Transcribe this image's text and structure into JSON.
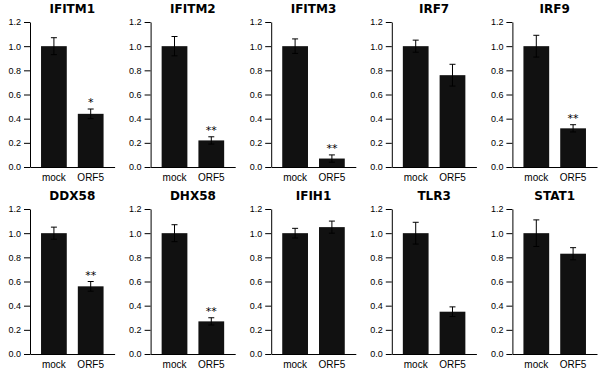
{
  "chart_data": [
    {
      "type": "bar",
      "title": "IFITM1",
      "categories": [
        "mock",
        "ORF5"
      ],
      "values": [
        1.0,
        0.44
      ],
      "errors": [
        0.07,
        0.04
      ],
      "color": "#111111",
      "ylim": [
        0,
        1.2
      ],
      "yticks": [
        {
          "value": 0,
          "label": "0.0"
        },
        0.2,
        0.4,
        0.6,
        0.8,
        {
          "value": 1,
          "label": "1.0"
        },
        1.2
      ],
      "annotations": [
        {
          "text": "*",
          "category": "ORF5"
        }
      ]
    },
    {
      "type": "bar",
      "title": "IFITM2",
      "categories": [
        "mock",
        "ORF5"
      ],
      "values": [
        1.0,
        0.22
      ],
      "errors": [
        0.08,
        0.03
      ],
      "color": "#111111",
      "ylim": [
        0,
        1.2
      ],
      "yticks": [
        {
          "value": 0,
          "label": "0.0"
        },
        0.2,
        0.4,
        0.6,
        0.8,
        {
          "value": 1,
          "label": "1.0"
        },
        1.2
      ],
      "annotations": [
        {
          "text": "**",
          "category": "ORF5"
        }
      ]
    },
    {
      "type": "bar",
      "title": "IFITM3",
      "categories": [
        "mock",
        "ORF5"
      ],
      "values": [
        1.0,
        0.07
      ],
      "errors": [
        0.06,
        0.03
      ],
      "color": "#111111",
      "ylim": [
        0,
        1.2
      ],
      "yticks": [
        {
          "value": 0,
          "label": "0.0"
        },
        0.2,
        0.4,
        0.6,
        0.8,
        {
          "value": 1,
          "label": "1.0"
        },
        1.2
      ],
      "annotations": [
        {
          "text": "**",
          "category": "ORF5"
        }
      ]
    },
    {
      "type": "bar",
      "title": "IRF7",
      "categories": [
        "mock",
        "ORF5"
      ],
      "values": [
        1.0,
        0.76
      ],
      "errors": [
        0.05,
        0.09
      ],
      "color": "#111111",
      "ylim": [
        0,
        1.2
      ],
      "yticks": [
        {
          "value": 0,
          "label": "0.0"
        },
        0.2,
        0.4,
        0.6,
        0.8,
        {
          "value": 1,
          "label": "1.0"
        },
        1.2
      ]
    },
    {
      "type": "bar",
      "title": "IRF9",
      "categories": [
        "mock",
        "ORF5"
      ],
      "values": [
        1.0,
        0.32
      ],
      "errors": [
        0.09,
        0.03
      ],
      "color": "#111111",
      "ylim": [
        0,
        1.2
      ],
      "yticks": [
        {
          "value": 0,
          "label": "0.0"
        },
        0.2,
        0.4,
        0.6,
        0.8,
        {
          "value": 1,
          "label": "1.0"
        },
        1.2
      ],
      "annotations": [
        {
          "text": "**",
          "category": "ORF5"
        }
      ]
    },
    {
      "type": "bar",
      "title": "DDX58",
      "categories": [
        "mock",
        "ORF5"
      ],
      "values": [
        1.0,
        0.56
      ],
      "errors": [
        0.05,
        0.04
      ],
      "color": "#111111",
      "ylim": [
        0,
        1.2
      ],
      "yticks": [
        {
          "value": 0,
          "label": "0.0"
        },
        0.2,
        0.4,
        0.6,
        0.8,
        {
          "value": 1,
          "label": "1.0"
        },
        1.2
      ],
      "annotations": [
        {
          "text": "**",
          "category": "ORF5"
        }
      ]
    },
    {
      "type": "bar",
      "title": "DHX58",
      "categories": [
        "mock",
        "ORF5"
      ],
      "values": [
        1.0,
        0.27
      ],
      "errors": [
        0.07,
        0.03
      ],
      "color": "#111111",
      "ylim": [
        0,
        1.2
      ],
      "yticks": [
        {
          "value": 0,
          "label": "0.0"
        },
        0.2,
        0.4,
        0.6,
        0.8,
        {
          "value": 1,
          "label": "1.0"
        },
        1.2
      ],
      "annotations": [
        {
          "text": "**",
          "category": "ORF5"
        }
      ]
    },
    {
      "type": "bar",
      "title": "IFIH1",
      "categories": [
        "mock",
        "ORF5"
      ],
      "values": [
        1.0,
        1.05
      ],
      "errors": [
        0.04,
        0.05
      ],
      "color": "#111111",
      "ylim": [
        0,
        1.2
      ],
      "yticks": [
        {
          "value": 0,
          "label": "0.0"
        },
        0.2,
        0.4,
        0.6,
        0.8,
        {
          "value": 1,
          "label": "1.0"
        },
        1.2
      ]
    },
    {
      "type": "bar",
      "title": "TLR3",
      "categories": [
        "mock",
        "ORF5"
      ],
      "values": [
        1.0,
        0.35
      ],
      "errors": [
        0.09,
        0.04
      ],
      "color": "#111111",
      "ylim": [
        0,
        1.2
      ],
      "yticks": [
        {
          "value": 0,
          "label": "0.0"
        },
        0.2,
        0.4,
        0.6,
        0.8,
        {
          "value": 1,
          "label": "1.0"
        },
        1.2
      ]
    },
    {
      "type": "bar",
      "title": "STAT1",
      "categories": [
        "mock",
        "ORF5"
      ],
      "values": [
        1.0,
        0.83
      ],
      "errors": [
        0.11,
        0.05
      ],
      "color": "#111111",
      "ylim": [
        0,
        1.2
      ],
      "yticks": [
        {
          "value": 0,
          "label": "0.0"
        },
        0.2,
        0.4,
        0.6,
        0.8,
        {
          "value": 1,
          "label": "1.0"
        },
        1.2
      ]
    }
  ]
}
